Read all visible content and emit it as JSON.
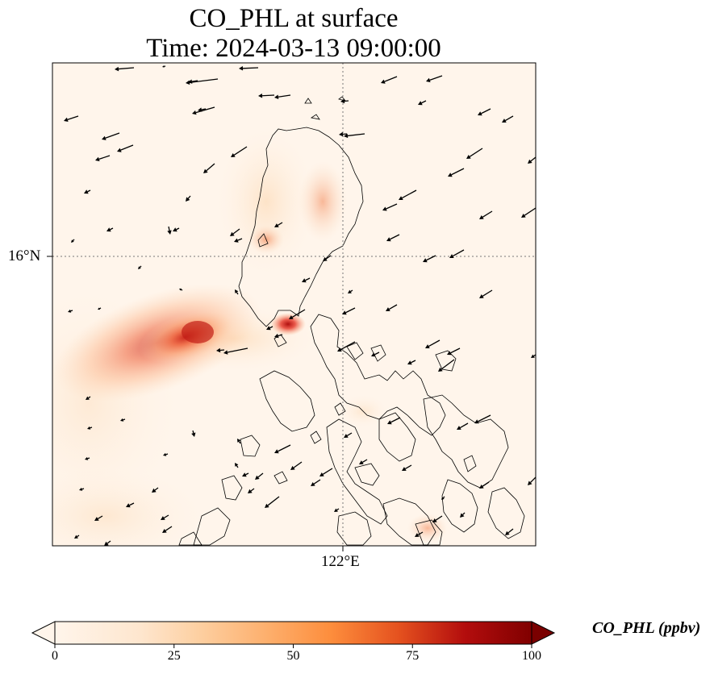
{
  "title_line1": "CO_PHL at surface",
  "title_line2": "Time: 2024-03-13 09:00:00",
  "axes": {
    "lat_tick": "16°N",
    "lon_tick": "122°E"
  },
  "colorbar": {
    "label": "CO_PHL (ppbv)",
    "ticks": [
      "0",
      "25",
      "50",
      "75",
      "100"
    ],
    "min": 0,
    "max": 100,
    "colormap": [
      "#fff5eb",
      "#fdd49e",
      "#fdae6b",
      "#f16913",
      "#d94801",
      "#a50f15",
      "#67000d"
    ],
    "extend": "both"
  },
  "colors": {
    "background_field": "#fff5eb",
    "coastline": "#000000",
    "wind_arrow": "#000000"
  },
  "features": [
    "coastline",
    "wind-vectors",
    "gridlines",
    "co-concentration-field"
  ]
}
